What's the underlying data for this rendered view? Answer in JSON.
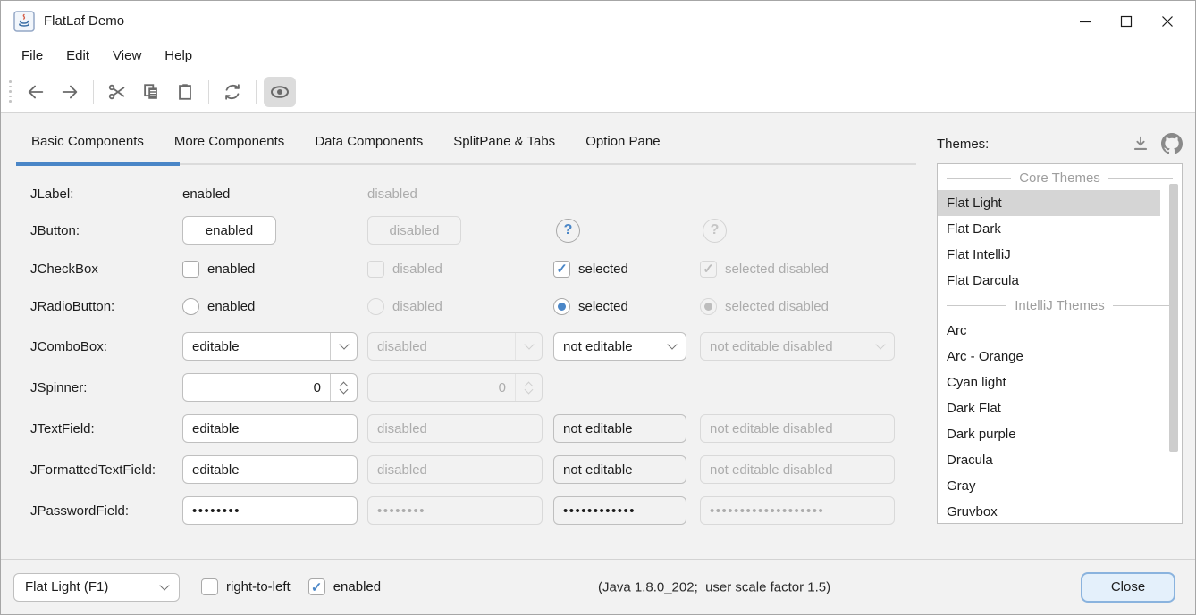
{
  "window": {
    "title": "FlatLaf Demo",
    "controls": [
      "minimize",
      "maximize",
      "close"
    ]
  },
  "menubar": {
    "items": [
      "File",
      "Edit",
      "View",
      "Help"
    ]
  },
  "toolbar": {
    "icons": [
      "back",
      "forward",
      "cut",
      "copy",
      "paste",
      "refresh",
      "show"
    ],
    "selected_icon": "show"
  },
  "tabs": {
    "items": [
      "Basic Components",
      "More Components",
      "Data Components",
      "SplitPane & Tabs",
      "Option Pane"
    ],
    "selected": "Basic Components"
  },
  "components": {
    "rows": [
      {
        "label": "JLabel:",
        "cells": [
          {
            "t": "text",
            "text": "enabled"
          },
          {
            "t": "text",
            "text": "disabled",
            "disabled": true
          },
          null,
          null
        ]
      },
      {
        "label": "JButton:",
        "cells": [
          {
            "t": "button",
            "text": "enabled"
          },
          {
            "t": "button",
            "text": "disabled",
            "disabled": true
          },
          {
            "t": "help",
            "text": "?"
          },
          {
            "t": "help",
            "text": "?",
            "disabled": true
          }
        ]
      },
      {
        "label": "JCheckBox",
        "cells": [
          {
            "t": "checkbox",
            "text": "enabled"
          },
          {
            "t": "checkbox",
            "text": "disabled",
            "disabled": true
          },
          {
            "t": "checkbox",
            "text": "selected",
            "checked": true
          },
          {
            "t": "checkbox",
            "text": "selected disabled",
            "checked": true,
            "disabled": true
          }
        ]
      },
      {
        "label": "JRadioButton:",
        "cells": [
          {
            "t": "radio",
            "text": "enabled"
          },
          {
            "t": "radio",
            "text": "disabled",
            "disabled": true
          },
          {
            "t": "radio",
            "text": "selected",
            "checked": true
          },
          {
            "t": "radio",
            "text": "selected disabled",
            "checked": true,
            "disabled": true
          }
        ]
      },
      {
        "label": "JComboBox:",
        "cells": [
          {
            "t": "combo",
            "text": "editable",
            "editable": true,
            "white": true
          },
          {
            "t": "combo",
            "text": "disabled",
            "editable": true,
            "disabled": true
          },
          {
            "t": "combo",
            "text": "not editable",
            "white": true
          },
          {
            "t": "combo",
            "text": "not editable disabled",
            "disabled": true
          }
        ]
      },
      {
        "label": "JSpinner:",
        "cells": [
          {
            "t": "spinner",
            "text": "0",
            "white": true
          },
          {
            "t": "spinner",
            "text": "0",
            "disabled": true
          },
          null,
          null
        ]
      },
      {
        "label": "JTextField:",
        "cells": [
          {
            "t": "field",
            "text": "editable",
            "white": true
          },
          {
            "t": "field",
            "text": "disabled",
            "disabled": true
          },
          {
            "t": "field",
            "text": "not editable"
          },
          {
            "t": "field",
            "text": "not editable disabled",
            "disabled": true
          }
        ]
      },
      {
        "label": "JFormattedTextField:",
        "cells": [
          {
            "t": "field",
            "text": "editable",
            "white": true
          },
          {
            "t": "field",
            "text": "disabled",
            "disabled": true
          },
          {
            "t": "field",
            "text": "not editable"
          },
          {
            "t": "field",
            "text": "not editable disabled",
            "disabled": true
          }
        ]
      },
      {
        "label": "JPasswordField:",
        "cells": [
          {
            "t": "field",
            "text": "••••••••",
            "white": true,
            "password": true
          },
          {
            "t": "field",
            "text": "••••••••",
            "disabled": true,
            "password": true
          },
          {
            "t": "field",
            "text": "••••••••••••",
            "password": true
          },
          {
            "t": "field",
            "text": "•••••••••••••••••••",
            "disabled": true,
            "password": true
          }
        ]
      }
    ]
  },
  "themes": {
    "label": "Themes:",
    "icons": [
      "download",
      "github"
    ],
    "entries": [
      {
        "type": "separator",
        "label": "Core Themes"
      },
      {
        "type": "item",
        "label": "Flat Light",
        "selected": true
      },
      {
        "type": "item",
        "label": "Flat Dark"
      },
      {
        "type": "item",
        "label": "Flat IntelliJ"
      },
      {
        "type": "item",
        "label": "Flat Darcula"
      },
      {
        "type": "separator",
        "label": "IntelliJ Themes"
      },
      {
        "type": "item",
        "label": "Arc"
      },
      {
        "type": "item",
        "label": "Arc - Orange"
      },
      {
        "type": "item",
        "label": "Cyan light"
      },
      {
        "type": "item",
        "label": "Dark Flat"
      },
      {
        "type": "item",
        "label": "Dark purple"
      },
      {
        "type": "item",
        "label": "Dracula"
      },
      {
        "type": "item",
        "label": "Gray"
      },
      {
        "type": "item",
        "label": "Gruvbox"
      }
    ]
  },
  "bottom": {
    "laf_combo": "Flat Light (F1)",
    "rtl_checkbox": {
      "label": "right-to-left",
      "checked": false
    },
    "enabled_checkbox": {
      "label": "enabled",
      "checked": true
    },
    "status": "(Java 1.8.0_202;  user scale factor 1.5)",
    "close_label": "Close"
  },
  "colors": {
    "accent": "#4A86C7",
    "selection": "#D5D5D5",
    "close_bg": "#E4F0FB",
    "close_border": "#8AB3DE"
  }
}
